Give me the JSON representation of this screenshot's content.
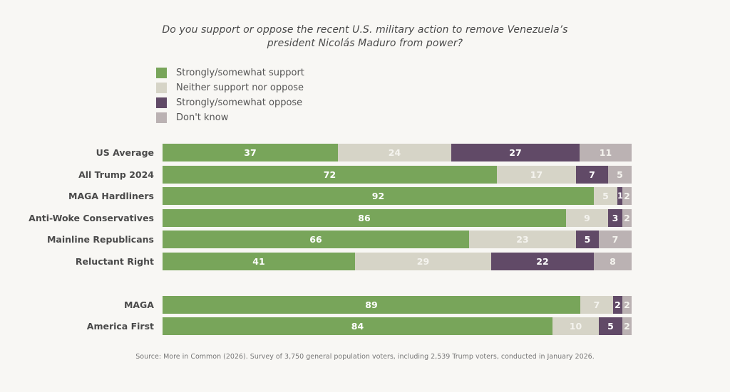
{
  "title": {
    "line1": "Do you support or oppose the recent U.S. military action to remove Venezuela’s",
    "line2": "president Nicolás Maduro from power?"
  },
  "legend": [
    {
      "label": "Strongly/somewhat support",
      "color": "#78a55a"
    },
    {
      "label": "Neither support nor oppose",
      "color": "#d6d4c7"
    },
    {
      "label": "Strongly/somewhat oppose",
      "color": "#614a67"
    },
    {
      "label": "Don't know",
      "color": "#bbb2b3"
    }
  ],
  "source": "Source: More in Common (2026). Survey of 3,750 general population voters, including 2,539 Trump voters, conducted in January 2026.",
  "chart_data": {
    "type": "bar",
    "orientation": "horizontal",
    "stacked": true,
    "title": "Do you support or oppose the recent U.S. military action to remove Venezuela’s president Nicolás Maduro from power?",
    "xlabel": "",
    "ylabel": "",
    "xlim": [
      0,
      100
    ],
    "legend_position": "top-left",
    "grid": false,
    "categories": [
      "US Average",
      "All Trump 2024",
      "MAGA Hardliners",
      "Anti-Woke Conservatives",
      "Mainline Republicans",
      "Reluctant Right",
      "MAGA",
      "America First"
    ],
    "groups": [
      [
        "US Average",
        "All Trump 2024",
        "MAGA Hardliners",
        "Anti-Woke Conservatives",
        "Mainline Republicans",
        "Reluctant Right"
      ],
      [
        "MAGA",
        "America First"
      ]
    ],
    "series": [
      {
        "name": "Strongly/somewhat support",
        "color": "#78a55a",
        "values": [
          37,
          72,
          92,
          86,
          66,
          41,
          89,
          84
        ]
      },
      {
        "name": "Neither support nor oppose",
        "color": "#d6d4c7",
        "values": [
          24,
          17,
          5,
          9,
          23,
          29,
          7,
          10
        ]
      },
      {
        "name": "Strongly/somewhat oppose",
        "color": "#614a67",
        "values": [
          27,
          7,
          1,
          3,
          5,
          22,
          2,
          5
        ]
      },
      {
        "name": "Don't know",
        "color": "#bbb2b3",
        "values": [
          11,
          5,
          2,
          2,
          7,
          8,
          2,
          2
        ]
      }
    ]
  }
}
